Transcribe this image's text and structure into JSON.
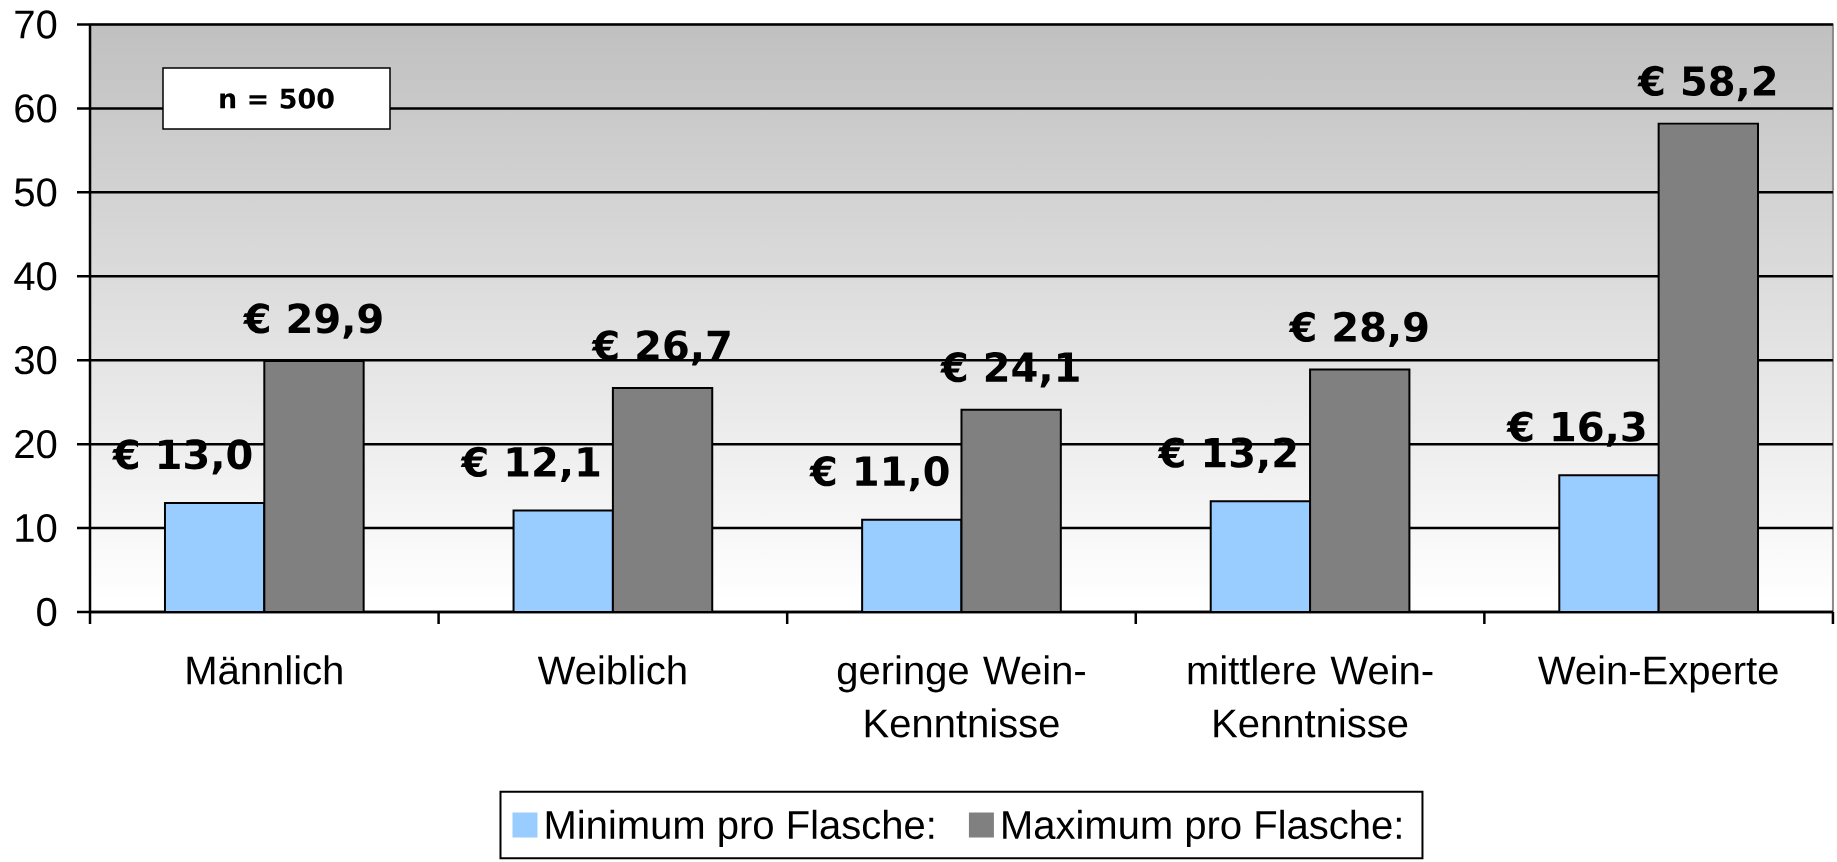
{
  "chart_data": {
    "type": "bar",
    "categories": [
      "Männlich",
      "Weiblich",
      "geringe Wein-Kenntnisse",
      "mittlere Wein-Kenntnisse",
      "Wein-Experte"
    ],
    "series": [
      {
        "name": "Minimum pro Flasche:",
        "color": "#99ccff",
        "values": [
          13.0,
          12.1,
          11.0,
          13.2,
          16.3
        ],
        "value_labels": [
          "€ 13,0",
          "€ 12,1",
          "€ 11,0",
          "€ 13,2",
          "€ 16,3"
        ]
      },
      {
        "name": "Maximum pro Flasche:",
        "color": "#808080",
        "values": [
          29.9,
          26.7,
          24.1,
          28.9,
          58.2
        ],
        "value_labels": [
          "€ 29,9",
          "€ 26,7",
          "€ 24,1",
          "€ 28,9",
          "€ 58,2"
        ]
      }
    ],
    "ylim": [
      0,
      70
    ],
    "yticks": [
      0,
      10,
      20,
      30,
      40,
      50,
      60,
      70
    ],
    "grid": "y",
    "legend": "bottom",
    "annotations": [
      "n = 500"
    ]
  }
}
